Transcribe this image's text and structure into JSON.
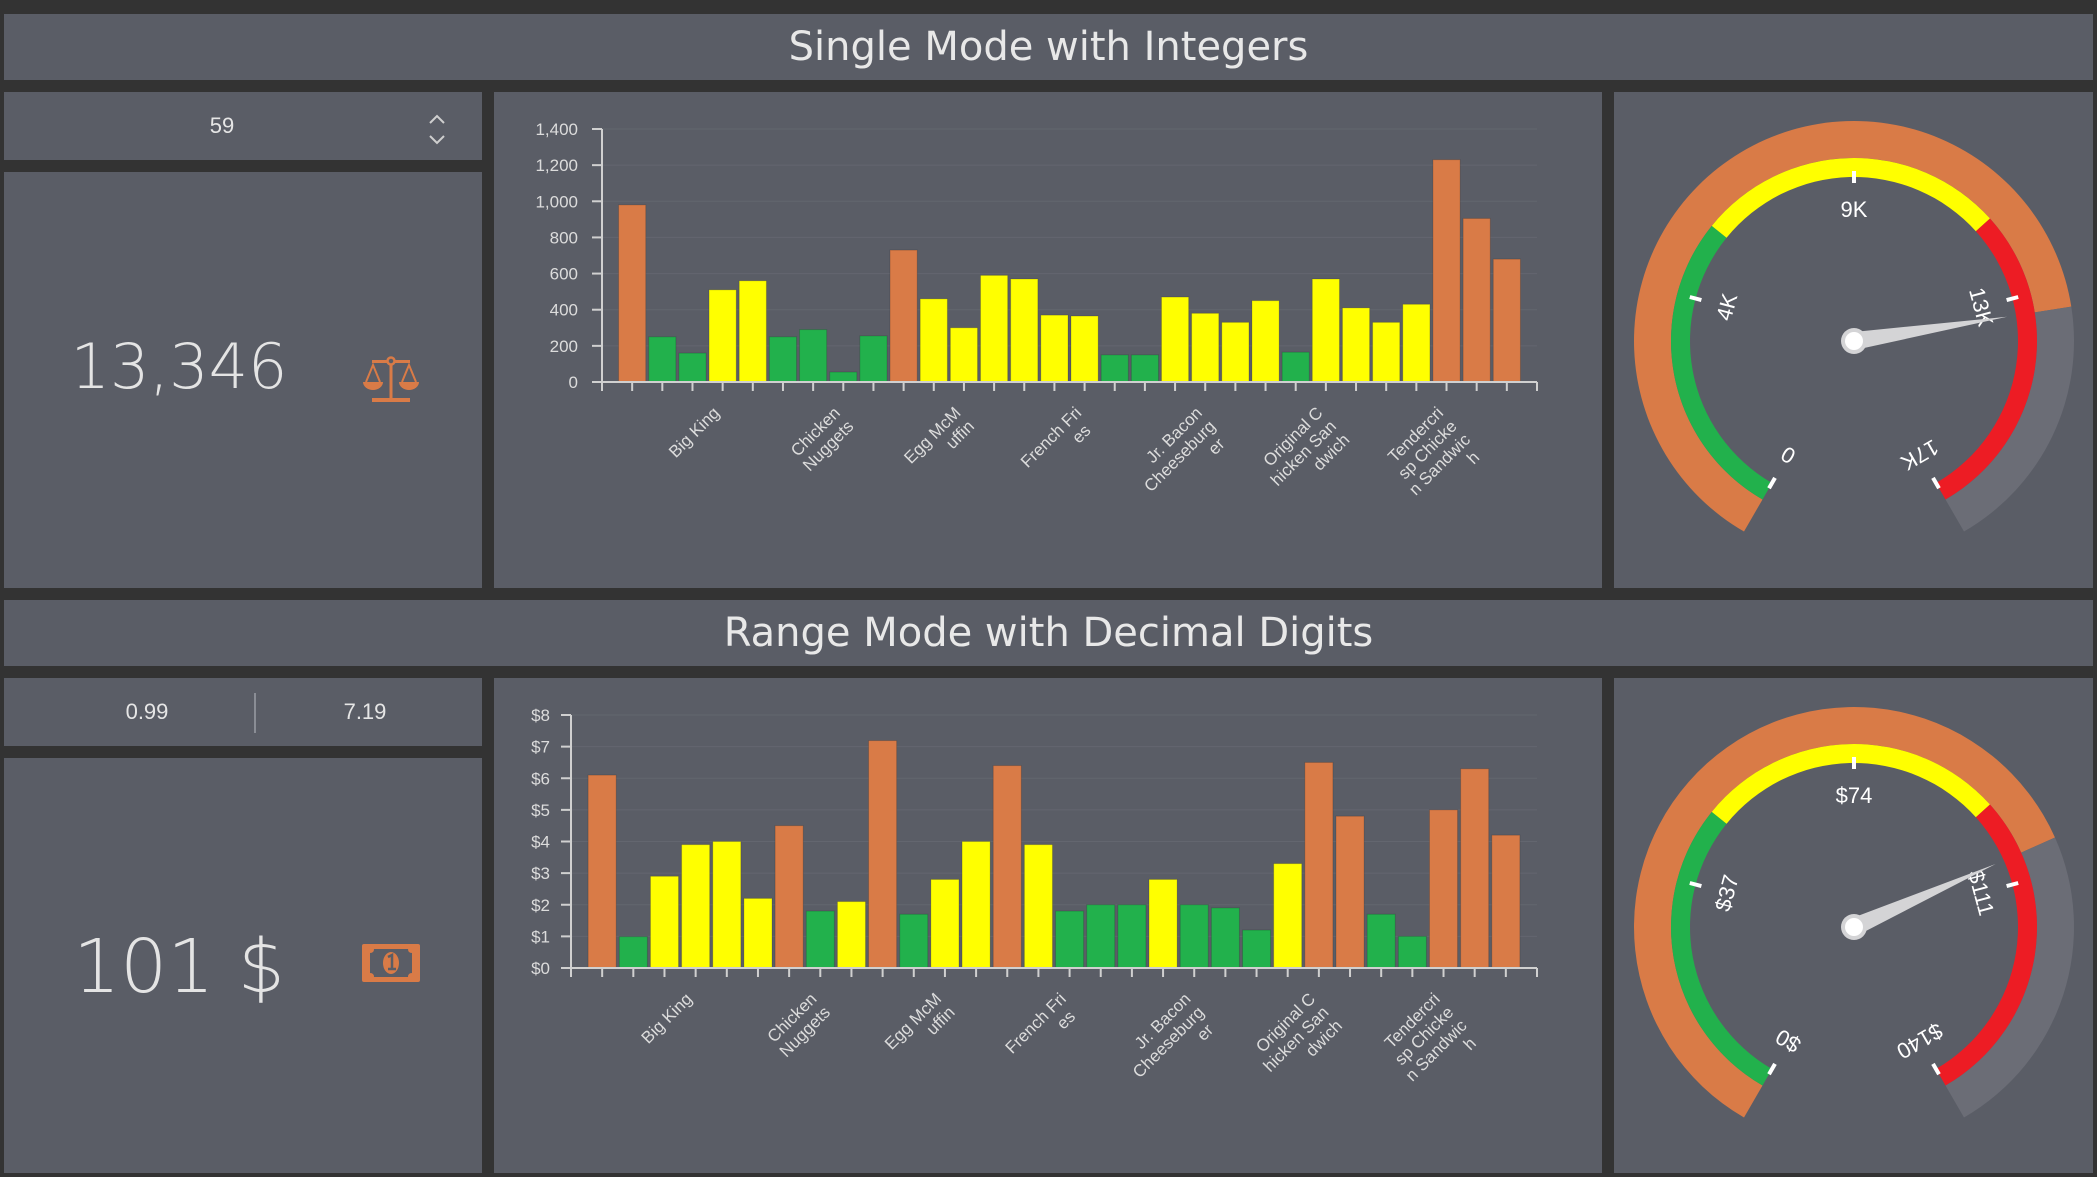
{
  "sections": [
    {
      "title": "Single Mode with Integers",
      "input": {
        "value": "59",
        "up_icon": "chevron-up-icon",
        "down_icon": "chevron-down-icon"
      },
      "kpi": {
        "value": "13,346",
        "icon": "scale-balance-icon"
      },
      "gauge": {
        "value": 13346,
        "fraction": 0.77,
        "tick_labels": [
          "0",
          "4K",
          "9K",
          "13K",
          "17K"
        ],
        "bands": [
          {
            "from": 0,
            "to": 0.33,
            "color": "#22b14c"
          },
          {
            "from": 0.33,
            "to": 0.66,
            "color": "#ffff00"
          },
          {
            "from": 0.66,
            "to": 1,
            "color": "#ed1c24"
          }
        ]
      }
    },
    {
      "title": "Range Mode with Decimal Digits",
      "input": {
        "from": "0.99",
        "to": "7.19"
      },
      "kpi": {
        "value": "101 $",
        "icon": "money-bill-icon"
      },
      "gauge": {
        "value": 101,
        "fraction": 0.72,
        "tick_labels": [
          "$0",
          "$37",
          "$74",
          "$111",
          "$140"
        ],
        "bands": [
          {
            "from": 0,
            "to": 0.33,
            "color": "#22b14c"
          },
          {
            "from": 0.33,
            "to": 0.66,
            "color": "#ffff00"
          },
          {
            "from": 0.66,
            "to": 1,
            "color": "#ed1c24"
          }
        ]
      }
    }
  ],
  "colors": {
    "orange": "#d97b47",
    "green": "#22b14c",
    "yellow": "#ffff00",
    "red": "#ed1c24",
    "gray": "#6b6d76",
    "panel": "#5a5d66",
    "background": "#333333"
  },
  "chart_data": [
    {
      "type": "bar",
      "title": "",
      "xlabel": "",
      "ylabel": "",
      "ylim": [
        0,
        1400
      ],
      "yticks": [
        "0",
        "200",
        "400",
        "600",
        "800",
        "1,000",
        "1,200",
        "1,400"
      ],
      "ytick_values": [
        0,
        200,
        400,
        600,
        800,
        1000,
        1200,
        1400
      ],
      "x_labels": [
        {
          "bar": 3,
          "lines": [
            "Big King"
          ]
        },
        {
          "bar": 7,
          "lines": [
            "Chicken",
            "Nuggets"
          ]
        },
        {
          "bar": 11,
          "lines": [
            "Egg McM",
            "uffin"
          ]
        },
        {
          "bar": 15,
          "lines": [
            "French Fri",
            "es"
          ]
        },
        {
          "bar": 19,
          "lines": [
            "Jr. Bacon",
            "Cheeseburg",
            "er"
          ]
        },
        {
          "bar": 23,
          "lines": [
            "Original C",
            "hicken San",
            "dwich"
          ]
        },
        {
          "bar": 27,
          "lines": [
            "Tendercri",
            "sp Chicke",
            "n Sandwic",
            "h"
          ]
        }
      ],
      "values": [
        980,
        250,
        160,
        510,
        560,
        250,
        290,
        55,
        255,
        730,
        460,
        300,
        590,
        570,
        370,
        365,
        150,
        150,
        470,
        380,
        330,
        450,
        165,
        570,
        410,
        330,
        430,
        1230,
        905,
        680
      ],
      "bar_colors": [
        "O",
        "G",
        "G",
        "Y",
        "Y",
        "G",
        "G",
        "G",
        "G",
        "O",
        "Y",
        "Y",
        "Y",
        "Y",
        "Y",
        "Y",
        "G",
        "G",
        "Y",
        "Y",
        "Y",
        "Y",
        "G",
        "Y",
        "Y",
        "Y",
        "Y",
        "O",
        "O",
        "O"
      ],
      "grid": true
    },
    {
      "type": "bar",
      "title": "",
      "xlabel": "",
      "ylabel": "",
      "ylim": [
        0,
        8
      ],
      "yticks": [
        "$0",
        "$1",
        "$2",
        "$3",
        "$4",
        "$5",
        "$6",
        "$7",
        "$8"
      ],
      "ytick_values": [
        0,
        1,
        2,
        3,
        4,
        5,
        6,
        7,
        8
      ],
      "x_labels": [
        {
          "bar": 3,
          "lines": [
            "Big King"
          ]
        },
        {
          "bar": 7,
          "lines": [
            "Chicken",
            "Nuggets"
          ]
        },
        {
          "bar": 11,
          "lines": [
            "Egg McM",
            "uffin"
          ]
        },
        {
          "bar": 15,
          "lines": [
            "French Fri",
            "es"
          ]
        },
        {
          "bar": 19,
          "lines": [
            "Jr. Bacon",
            "Cheeseburg",
            "er"
          ]
        },
        {
          "bar": 23,
          "lines": [
            "Original C",
            "hicken San",
            "dwich"
          ]
        },
        {
          "bar": 27,
          "lines": [
            "Tendercri",
            "sp Chicke",
            "n Sandwic",
            "h"
          ]
        }
      ],
      "values": [
        6.1,
        0.99,
        2.9,
        3.9,
        4.0,
        2.2,
        4.5,
        1.8,
        2.1,
        7.19,
        1.7,
        2.8,
        4.0,
        6.4,
        3.9,
        1.8,
        2.0,
        2.0,
        2.8,
        2.0,
        1.9,
        1.2,
        3.3,
        6.5,
        4.8,
        1.7,
        1.0,
        5.0,
        6.3,
        4.2
      ],
      "bar_colors": [
        "O",
        "G",
        "Y",
        "Y",
        "Y",
        "Y",
        "O",
        "G",
        "Y",
        "O",
        "G",
        "Y",
        "Y",
        "O",
        "Y",
        "G",
        "G",
        "G",
        "Y",
        "G",
        "G",
        "G",
        "Y",
        "O",
        "O",
        "G",
        "G",
        "O",
        "O",
        "O"
      ],
      "grid": true
    }
  ]
}
